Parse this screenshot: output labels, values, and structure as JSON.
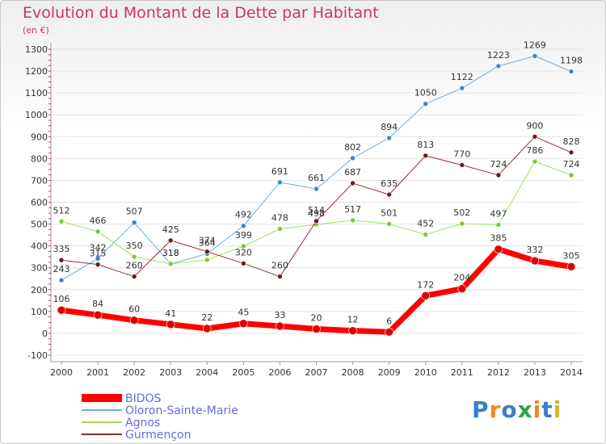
{
  "title": "Evolution du Montant de la Dette par Habitant",
  "subtitle": "(en €)",
  "logo": {
    "text": "Proxiti",
    "colors": [
      "#3a7fc7",
      "#f08a1c",
      "#3a7fc7",
      "#2aa84a",
      "#f08a1c",
      "#3a7fc7",
      "#e0b020"
    ]
  },
  "chart_data": {
    "type": "line",
    "x": [
      "2000",
      "2001",
      "2002",
      "2003",
      "2004",
      "2005",
      "2006",
      "2007",
      "2008",
      "2009",
      "2010",
      "2011",
      "2012",
      "2013",
      "2014"
    ],
    "ylim": [
      -100,
      1300
    ],
    "yticks": [
      -100,
      0,
      100,
      200,
      300,
      400,
      500,
      600,
      700,
      800,
      900,
      1000,
      1100,
      1200,
      1300
    ],
    "grid": "horizontal",
    "legend": "bottom-left",
    "series": [
      {
        "name": "Oloron-Sainte-Marie",
        "color": "#6aaee0",
        "marker": "#3f84c4",
        "width": 1,
        "values": [
          243,
          342,
          507,
          318,
          364,
          492,
          691,
          661,
          802,
          894,
          1050,
          1122,
          1223,
          1269,
          1198
        ],
        "labels": [
          "243",
          "342",
          "507",
          "318",
          "364",
          "492",
          "691",
          "661",
          "802",
          "894",
          "1050",
          "1122",
          "1223",
          "1269",
          "1198"
        ]
      },
      {
        "name": "Agnos",
        "color": "#9ee05a",
        "marker": "#7cc83c",
        "width": 1,
        "values": [
          512,
          466,
          350,
          318,
          336,
          399,
          478,
          498,
          517,
          501,
          452,
          502,
          497,
          786,
          724
        ],
        "labels": [
          "512",
          "466",
          "350",
          "318",
          "",
          "399",
          "478",
          "498",
          "517",
          "501",
          "452",
          "502",
          "497",
          "786",
          "724"
        ]
      },
      {
        "name": "Gurmençon",
        "color": "#8a3030",
        "marker": "#6a1c1c",
        "width": 1,
        "values": [
          335,
          315,
          260,
          425,
          374,
          320,
          260,
          514,
          687,
          635,
          813,
          770,
          724,
          900,
          828
        ],
        "labels": [
          "335",
          "315",
          "260",
          "425",
          "374",
          "320",
          "260",
          "514",
          "687",
          "635",
          "813",
          "770",
          "724",
          "900",
          "828"
        ]
      },
      {
        "name": "BIDOS",
        "color": "#ff0000",
        "marker": "#e00000",
        "width": 7,
        "values": [
          106,
          84,
          60,
          41,
          22,
          45,
          33,
          20,
          12,
          6,
          172,
          204,
          385,
          332,
          305
        ],
        "labels": [
          "106",
          "84",
          "60",
          "41",
          "22",
          "45",
          "33",
          "20",
          "12",
          "6",
          "172",
          "204",
          "385",
          "332",
          "305"
        ]
      }
    ]
  }
}
